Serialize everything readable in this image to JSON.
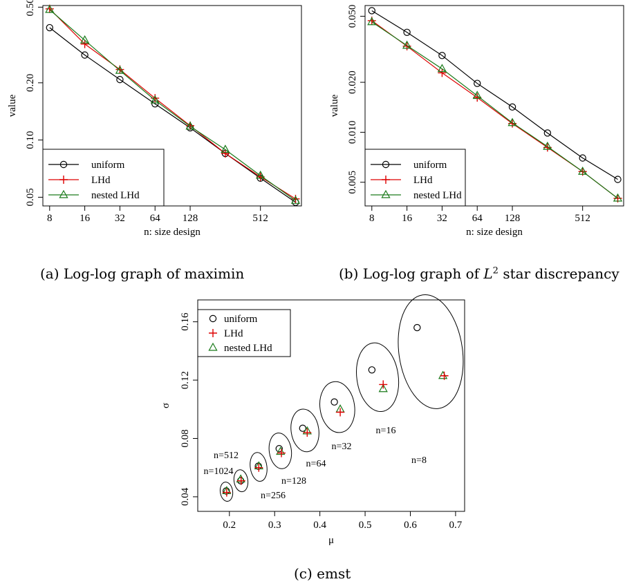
{
  "colors": {
    "uniform": "#000000",
    "lhd": "#dd0000",
    "nested": "#1a7a1a"
  },
  "chart_data": [
    {
      "type": "line",
      "caption_prefix": "(a) Log-log graph of maximin",
      "xlabel": "n: size design",
      "ylabel": "value",
      "xscale": "log",
      "yscale": "log",
      "xlim": [
        7,
        1150
      ],
      "ylim": [
        0.045,
        0.51
      ],
      "xticks": [
        "8",
        "16",
        "32",
        "64",
        "128",
        "512"
      ],
      "yticks": [
        "0.05",
        "0.10",
        "0.20",
        "0.50"
      ],
      "x": [
        8,
        16,
        32,
        64,
        128,
        256,
        512,
        1024
      ],
      "legend_position": "bottom-left",
      "series": [
        {
          "name": "uniform",
          "marker": "circle",
          "values": [
            0.39,
            0.28,
            0.208,
            0.155,
            0.116,
            0.085,
            0.063,
            0.047
          ]
        },
        {
          "name": "LHd",
          "marker": "plus",
          "values": [
            0.49,
            0.32,
            0.235,
            0.166,
            0.119,
            0.085,
            0.064,
            0.049
          ]
        },
        {
          "name": "nested LHd",
          "marker": "triangle",
          "values": [
            0.485,
            0.335,
            0.232,
            0.162,
            0.118,
            0.089,
            0.065,
            0.048
          ]
        }
      ]
    },
    {
      "type": "line",
      "caption_prefix": "(b) Log-log graph of",
      "caption_math": "L",
      "caption_sup": "2",
      "caption_suffix": "star discrepancy",
      "xlabel": "n: size design",
      "ylabel": "value",
      "xscale": "log",
      "yscale": "log",
      "xlim": [
        7,
        1150
      ],
      "ylim": [
        0.0036,
        0.058
      ],
      "xticks": [
        "8",
        "16",
        "32",
        "64",
        "128",
        "512"
      ],
      "yticks": [
        "0.005",
        "0.010",
        "0.020",
        "0.050"
      ],
      "x": [
        8,
        16,
        32,
        64,
        128,
        256,
        512,
        1024
      ],
      "legend_position": "bottom-left",
      "series": [
        {
          "name": "uniform",
          "marker": "circle",
          "values": [
            0.054,
            0.04,
            0.029,
            0.0197,
            0.0142,
            0.0099,
            0.007,
            0.0052
          ]
        },
        {
          "name": "LHd",
          "marker": "plus",
          "values": [
            0.047,
            0.033,
            0.0228,
            0.0162,
            0.0113,
            0.0081,
            0.0058,
            0.004
          ]
        },
        {
          "name": "nested LHd",
          "marker": "triangle",
          "values": [
            0.0462,
            0.0333,
            0.0241,
            0.0166,
            0.0114,
            0.0082,
            0.0058,
            0.004
          ]
        }
      ]
    },
    {
      "type": "scatter",
      "caption_prefix": "(c) emst",
      "xlabel": "μ",
      "ylabel": "σ",
      "xlim": [
        0.13,
        0.72
      ],
      "ylim": [
        0.03,
        0.175
      ],
      "xticks": [
        "0.2",
        "0.3",
        "0.4",
        "0.5",
        "0.6",
        "0.7"
      ],
      "yticks": [
        "0.04",
        "0.08",
        "0.12",
        "0.16"
      ],
      "legend_position": "top-left",
      "groups": [
        {
          "label": "n=8",
          "uniform": [
            0.615,
            0.156
          ],
          "lhd": [
            0.675,
            0.123
          ],
          "nested": [
            0.672,
            0.123
          ]
        },
        {
          "label": "n=16",
          "uniform": [
            0.515,
            0.127
          ],
          "lhd": [
            0.54,
            0.117
          ],
          "nested": [
            0.54,
            0.114
          ]
        },
        {
          "label": "n=32",
          "uniform": [
            0.432,
            0.105
          ],
          "lhd": [
            0.445,
            0.098
          ],
          "nested": [
            0.445,
            0.1
          ]
        },
        {
          "label": "n=64",
          "uniform": [
            0.362,
            0.087
          ],
          "lhd": [
            0.372,
            0.084
          ],
          "nested": [
            0.372,
            0.085
          ]
        },
        {
          "label": "n=128",
          "uniform": [
            0.31,
            0.073
          ],
          "lhd": [
            0.315,
            0.07
          ],
          "nested": [
            0.313,
            0.071
          ]
        },
        {
          "label": "n=256",
          "uniform": [
            0.264,
            0.061
          ],
          "lhd": [
            0.265,
            0.06
          ],
          "nested": [
            0.265,
            0.061
          ]
        },
        {
          "label": "n=512",
          "uniform": [
            0.225,
            0.051
          ],
          "lhd": [
            0.226,
            0.051
          ],
          "nested": [
            0.225,
            0.052
          ]
        },
        {
          "label": "n=1024",
          "uniform": [
            0.193,
            0.044
          ],
          "lhd": [
            0.194,
            0.043
          ],
          "nested": [
            0.194,
            0.044
          ]
        }
      ],
      "legend": [
        "uniform",
        "LHd",
        "nested LHd"
      ]
    }
  ]
}
